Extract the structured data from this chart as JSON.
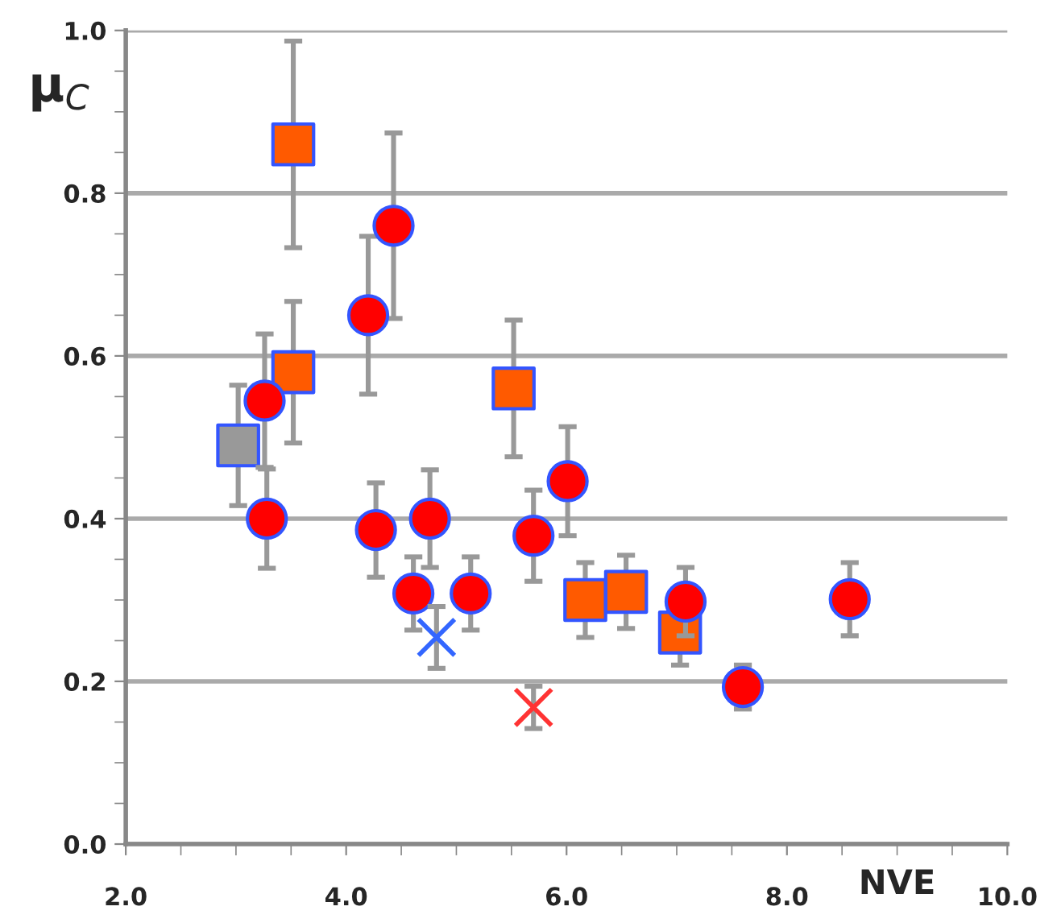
{
  "chart_data": {
    "type": "scatter",
    "xlabel": "NVE",
    "ylabel": "μ$_{C}$",
    "xlim": [
      2.0,
      10.0
    ],
    "xticks": [
      {
        "value": 2,
        "label": "2.0"
      },
      {
        "value": 4,
        "label": "4.0"
      },
      {
        "value": 6,
        "label": "6.0"
      },
      {
        "value": 8,
        "label": "8.0"
      },
      {
        "value": 10,
        "label": "10.0"
      }
    ],
    "ylim": [
      0.0,
      1.0
    ],
    "yticks": [
      {
        "value": 0,
        "label": "0.0"
      },
      {
        "value": 0.2,
        "label": "0.2"
      },
      {
        "value": 0.4,
        "label": "0.4"
      },
      {
        "value": 0.6,
        "label": "0.6"
      },
      {
        "value": 0.8,
        "label": "0.8"
      },
      {
        "value": 1.0,
        "label": "1.0"
      }
    ],
    "grid": "y",
    "legend": false,
    "series": [
      {
        "color": "#999999",
        "marker": "square",
        "x": [
          3.02
        ],
        "values": [
          0.49
        ],
        "errors": [
          0.074
        ]
      },
      {
        "color": "#ff5a00",
        "marker": "square",
        "x": [
          3.52,
          3.52,
          5.52,
          6.17,
          6.54,
          7.03
        ],
        "values": [
          0.86,
          0.58,
          0.56,
          0.3,
          0.31,
          0.26
        ],
        "errors": [
          0.127,
          0.087,
          0.084,
          0.046,
          0.045,
          0.04
        ]
      },
      {
        "color": "#ff0000",
        "marker": "circle",
        "x": [
          3.26,
          4.2,
          4.43,
          3.28,
          4.27,
          4.76,
          4.61,
          5.13,
          5.7,
          6.01,
          7.08,
          7.6,
          8.57
        ],
        "values": [
          0.545,
          0.65,
          0.76,
          0.4,
          0.386,
          0.4,
          0.308,
          0.308,
          0.379,
          0.446,
          0.298,
          0.193,
          0.301
        ],
        "errors": [
          0.082,
          0.097,
          0.114,
          0.061,
          0.058,
          0.06,
          0.045,
          0.045,
          0.056,
          0.067,
          0.042,
          0.027,
          0.045
        ]
      },
      {
        "color": "#3366ff",
        "marker": "cross",
        "x": [
          4.82
        ],
        "values": [
          0.254
        ],
        "errors": [
          0.038
        ]
      },
      {
        "color": "#ff3333",
        "marker": "cross",
        "x": [
          5.7
        ],
        "values": [
          0.168
        ],
        "errors": [
          0.026
        ]
      }
    ]
  }
}
